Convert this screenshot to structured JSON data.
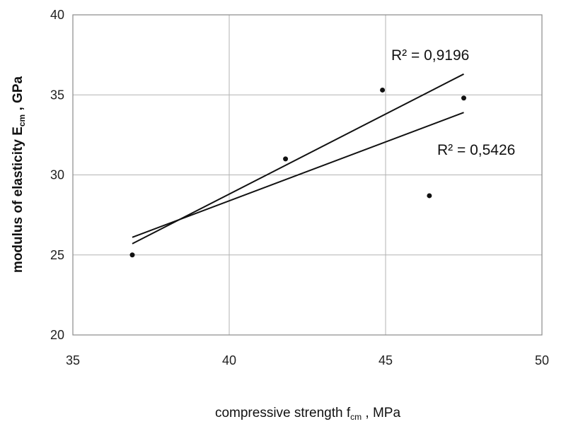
{
  "chart_data": {
    "type": "scatter",
    "x_label": {
      "main": "compressive strength f",
      "sub": "cm",
      "rest": " , MPa"
    },
    "y_label": {
      "main": "modulus of elasticity E",
      "sub": "cm",
      "rest": " , GPa"
    },
    "xlim": [
      35,
      50
    ],
    "ylim": [
      20,
      40
    ],
    "x_ticks": [
      "35",
      "40",
      "45",
      "50"
    ],
    "y_ticks": [
      "20",
      "25",
      "30",
      "35",
      "40"
    ],
    "grid": true,
    "points": [
      {
        "x": 36.9,
        "y": 25.0
      },
      {
        "x": 41.8,
        "y": 31.0
      },
      {
        "x": 44.9,
        "y": 35.3
      },
      {
        "x": 46.4,
        "y": 28.7
      },
      {
        "x": 47.5,
        "y": 34.8
      }
    ],
    "trendlines": [
      {
        "label": "R² = 0,9196",
        "x": [
          36.9,
          47.5
        ],
        "y": [
          25.7,
          36.3
        ]
      },
      {
        "label": "R² = 0,5426",
        "x": [
          36.9,
          47.5
        ],
        "y": [
          26.1,
          33.9
        ]
      }
    ]
  }
}
